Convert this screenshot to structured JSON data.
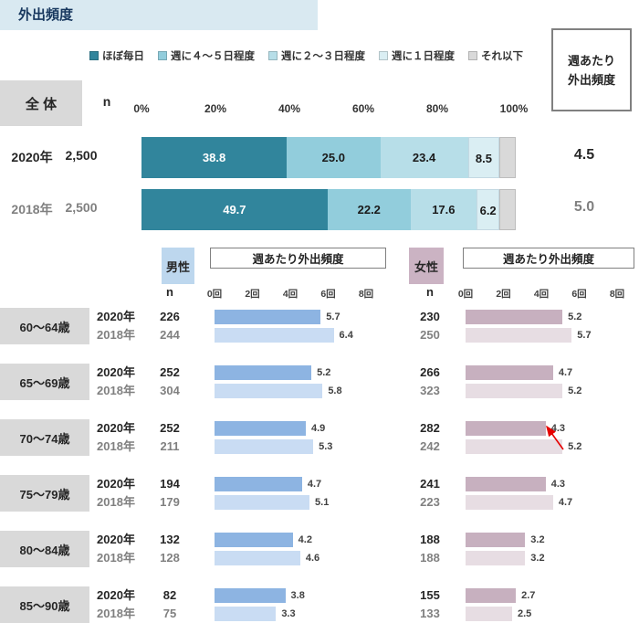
{
  "title": "外出頻度",
  "chart_data": {
    "overall": {
      "type": "stacked_bar",
      "title": "外出頻度",
      "group_label": "全 体",
      "n_header": "n",
      "right_header_line1": "週あたり",
      "right_header_line2": "外出頻度",
      "legend": [
        "ほぼ毎日",
        "週に４～５日程度",
        "週に２～３日程度",
        "週に１日程度",
        "それ以下"
      ],
      "legend_colors": [
        "#31859C",
        "#92CDDC",
        "#B7DEE8",
        "#DAEEF3",
        "#D9D9D9"
      ],
      "axis_ticks": [
        "0%",
        "20%",
        "40%",
        "60%",
        "80%",
        "100%"
      ],
      "xlim": [
        0,
        100
      ],
      "rows": [
        {
          "year": "2020年",
          "n": "2,500",
          "values": [
            38.8,
            25.0,
            23.4,
            8.5,
            4.3
          ],
          "labels": [
            "38.8",
            "25.0",
            "23.4",
            "8.5",
            ""
          ],
          "weekly_avg": "4.5"
        },
        {
          "year": "2018年",
          "n": "2,500",
          "values": [
            49.7,
            22.2,
            17.6,
            6.2,
            4.3
          ],
          "labels": [
            "49.7",
            "22.2",
            "17.6",
            "6.2",
            ""
          ],
          "weekly_avg": "5.0"
        }
      ]
    },
    "by_age": {
      "type": "bar",
      "panel_title_male": "週あたり外出頻度",
      "panel_title_female": "週あたり外出頻度",
      "male_header": "男性",
      "female_header": "女性",
      "n_header_male": "n",
      "n_header_female": "n",
      "axis_ticks": [
        "0回",
        "2回",
        "4回",
        "6回",
        "8回"
      ],
      "xlim": [
        0,
        8
      ],
      "groups": [
        {
          "age": "60～64歳",
          "arrow": false,
          "rows": [
            {
              "year": "2020年",
              "male_n": "226",
              "male": "5.7",
              "female_n": "230",
              "female": "5.2"
            },
            {
              "year": "2018年",
              "male_n": "244",
              "male": "6.4",
              "female_n": "250",
              "female": "5.7"
            }
          ]
        },
        {
          "age": "65～69歳",
          "arrow": false,
          "rows": [
            {
              "year": "2020年",
              "male_n": "252",
              "male": "5.2",
              "female_n": "266",
              "female": "4.7"
            },
            {
              "year": "2018年",
              "male_n": "304",
              "male": "5.8",
              "female_n": "323",
              "female": "5.2"
            }
          ]
        },
        {
          "age": "70～74歳",
          "arrow": true,
          "rows": [
            {
              "year": "2020年",
              "male_n": "252",
              "male": "4.9",
              "female_n": "282",
              "female": "4.3"
            },
            {
              "year": "2018年",
              "male_n": "211",
              "male": "5.3",
              "female_n": "242",
              "female": "5.2"
            }
          ]
        },
        {
          "age": "75～79歳",
          "arrow": false,
          "rows": [
            {
              "year": "2020年",
              "male_n": "194",
              "male": "4.7",
              "female_n": "241",
              "female": "4.3"
            },
            {
              "year": "2018年",
              "male_n": "179",
              "male": "5.1",
              "female_n": "223",
              "female": "4.7"
            }
          ]
        },
        {
          "age": "80～84歳",
          "arrow": false,
          "rows": [
            {
              "year": "2020年",
              "male_n": "132",
              "male": "4.2",
              "female_n": "188",
              "female": "3.2"
            },
            {
              "year": "2018年",
              "male_n": "128",
              "male": "4.6",
              "female_n": "188",
              "female": "3.2"
            }
          ]
        },
        {
          "age": "85～90歳",
          "arrow": false,
          "rows": [
            {
              "year": "2020年",
              "male_n": "82",
              "male": "3.8",
              "female_n": "155",
              "female": "2.7"
            },
            {
              "year": "2018年",
              "male_n": "75",
              "male": "3.3",
              "female_n": "133",
              "female": "2.5"
            }
          ]
        }
      ],
      "annotation": {
        "group": "70～74歳",
        "gender": "female",
        "type": "arrow",
        "color": "#E60000"
      }
    },
    "colors": {
      "banner_bg": "#D9E9F1",
      "box_bg": "#D9D9D9",
      "male_header_bg": "#BDD7EE",
      "female_header_bg": "#CBB3C3",
      "male_2020": "#8DB4E2",
      "male_2018": "#C9DCF3",
      "female_2020": "#C7B0BF",
      "female_2018": "#E7DDE3",
      "stack_2020_text": "#262626",
      "stack_2018_text": "#808080",
      "arrow": "#E60000"
    }
  }
}
